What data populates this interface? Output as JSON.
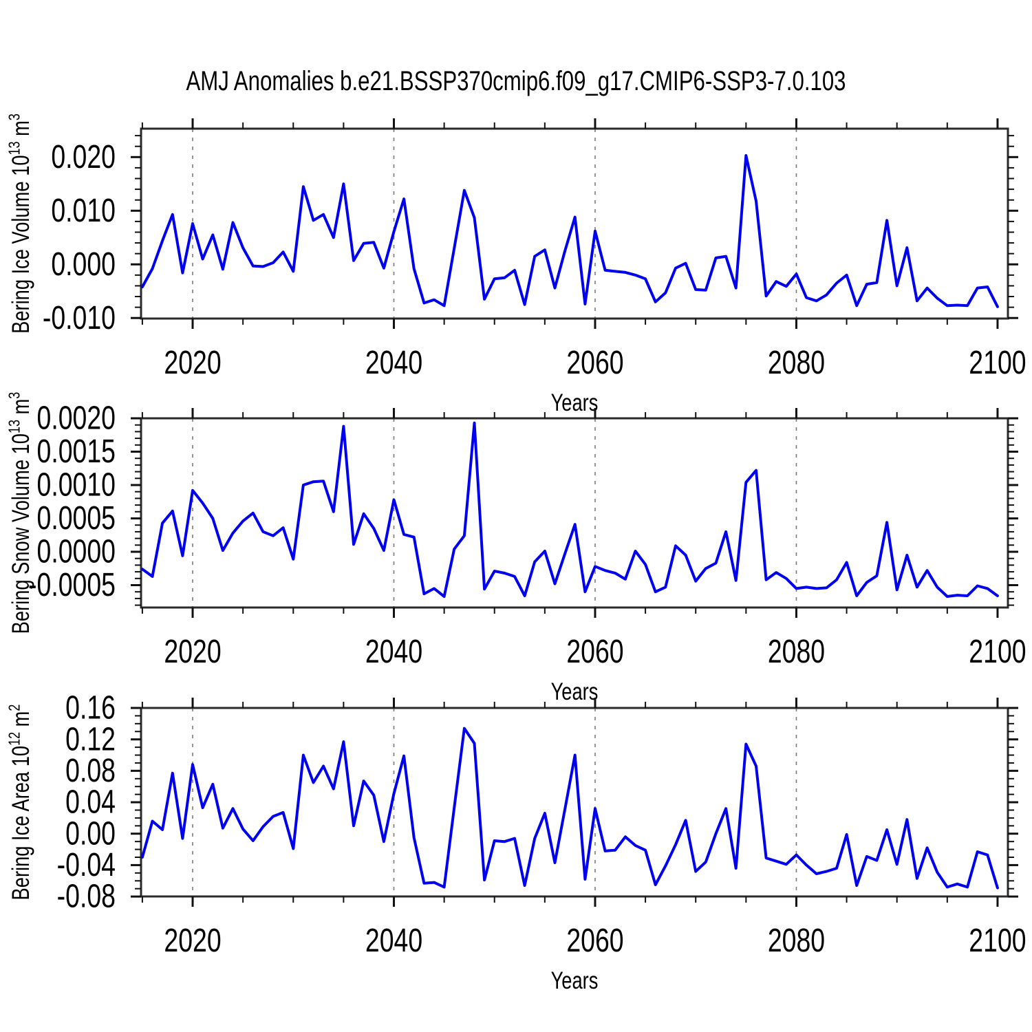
{
  "title": "AMJ Anomalies b.e21.BSSP370cmip6.f09_g17.CMIP6-SSP3-7.0.103",
  "line_color": "#0000f0",
  "grid_color": "#7a7a7a",
  "frame_color": "#2b2b2b",
  "chart_data": [
    {
      "type": "line",
      "panel_id": "bering-ice-volume",
      "ylabel_segments": [
        {
          "t": "Bering Ice Volume 10"
        },
        {
          "t": "13",
          "sup": true
        },
        {
          "t": " m"
        },
        {
          "t": "3",
          "sup": true
        }
      ],
      "xlabel": "Years",
      "x_start": 2015,
      "x_end": 2100,
      "xlim": [
        2014.87,
        2101.03
      ],
      "xticks_major": [
        2020,
        2040,
        2060,
        2080,
        2100
      ],
      "xtick_labels": [
        "2020",
        "2040",
        "2060",
        "2080",
        "2100"
      ],
      "xtick_minor_step": 5,
      "gridlines_x": [
        2020,
        2040,
        2060,
        2080
      ],
      "ylim": [
        -0.0101,
        0.0253
      ],
      "yticks_major": [
        -0.01,
        0.0,
        0.01,
        0.02
      ],
      "ytick_labels": [
        "-0.010",
        "0.000",
        "0.010",
        "0.020"
      ],
      "ytick_minor_step": 0.002,
      "legend": "none",
      "grid": "vertical-dashed",
      "values": [
        -0.0042,
        -0.0008,
        0.0044,
        0.0093,
        -0.0016,
        0.0076,
        0.001,
        0.0055,
        -0.0009,
        0.0078,
        0.0031,
        -0.0003,
        -0.0004,
        0.0003,
        0.0023,
        -0.0013,
        0.0145,
        0.0082,
        0.0093,
        0.005,
        0.015,
        0.0007,
        0.0039,
        0.0041,
        -0.0007,
        0.0061,
        0.0122,
        -0.0008,
        -0.0072,
        -0.0066,
        -0.0077,
        0.003,
        0.0138,
        0.0087,
        -0.0065,
        -0.0027,
        -0.0025,
        -0.0011,
        -0.0075,
        0.0015,
        0.0027,
        -0.0044,
        0.0025,
        0.0088,
        -0.0074,
        0.0062,
        -0.0011,
        -0.0013,
        -0.0015,
        -0.002,
        -0.0027,
        -0.007,
        -0.0053,
        -0.0007,
        0.0002,
        -0.0047,
        -0.0048,
        0.0012,
        0.0015,
        -0.0044,
        0.0203,
        0.0118,
        -0.0059,
        -0.0032,
        -0.0041,
        -0.0018,
        -0.0062,
        -0.0068,
        -0.0057,
        -0.0035,
        -0.002,
        -0.0077,
        -0.0037,
        -0.0034,
        0.0082,
        -0.004,
        0.0031,
        -0.0068,
        -0.0044,
        -0.0063,
        -0.0077,
        -0.0076,
        -0.0077,
        -0.0044,
        -0.0042,
        -0.0079
      ]
    },
    {
      "type": "line",
      "panel_id": "bering-snow-volume",
      "ylabel_segments": [
        {
          "t": "Bering Snow Volume 10"
        },
        {
          "t": "13",
          "sup": true
        },
        {
          "t": " m"
        },
        {
          "t": "3",
          "sup": true
        }
      ],
      "xlabel": "Years",
      "x_start": 2015,
      "x_end": 2100,
      "xlim": [
        2014.87,
        2101.03
      ],
      "xticks_major": [
        2020,
        2040,
        2060,
        2080,
        2100
      ],
      "xtick_labels": [
        "2020",
        "2040",
        "2060",
        "2080",
        "2100"
      ],
      "xtick_minor_step": 5,
      "gridlines_x": [
        2020,
        2040,
        2060,
        2080
      ],
      "ylim": [
        -0.000835,
        0.002
      ],
      "yticks_major": [
        -0.0005,
        0.0,
        0.0005,
        0.001,
        0.0015,
        0.002
      ],
      "ytick_labels": [
        "-0.0005",
        "0.0000",
        "0.0005",
        "0.0010",
        "0.0015",
        "0.0020"
      ],
      "ytick_minor_step": 0.0001,
      "legend": "none",
      "grid": "vertical-dashed",
      "values": [
        -0.00026,
        -0.00037,
        0.00043,
        0.00061,
        -6e-05,
        0.00092,
        0.00073,
        0.0005,
        2e-05,
        0.00028,
        0.00046,
        0.00058,
        0.0003,
        0.00024,
        0.00036,
        -0.00011,
        0.001,
        0.00105,
        0.00106,
        0.0006,
        0.00188,
        0.00011,
        0.00057,
        0.00035,
        2e-05,
        0.00078,
        0.00026,
        0.00022,
        -0.00063,
        -0.00055,
        -0.00067,
        4e-05,
        0.00024,
        0.00193,
        -0.00056,
        -0.00029,
        -0.00032,
        -0.00037,
        -0.00066,
        -0.00015,
        1e-05,
        -0.00048,
        -3e-05,
        0.00041,
        -0.0006,
        -0.00022,
        -0.00028,
        -0.00032,
        -0.00041,
        1e-05,
        -0.00019,
        -0.0006,
        -0.00053,
        9e-05,
        -5e-05,
        -0.00044,
        -0.00025,
        -0.00017,
        0.0003,
        -0.00043,
        0.00104,
        0.00122,
        -0.00042,
        -0.00031,
        -0.0004,
        -0.00055,
        -0.00053,
        -0.00055,
        -0.00054,
        -0.00042,
        -0.00016,
        -0.00066,
        -0.00046,
        -0.00036,
        0.00044,
        -0.00057,
        -5e-05,
        -0.00053,
        -0.00028,
        -0.00053,
        -0.00067,
        -0.00065,
        -0.00066,
        -0.00051,
        -0.00055,
        -0.00066
      ]
    },
    {
      "type": "line",
      "panel_id": "bering-ice-area",
      "ylabel_segments": [
        {
          "t": "Bering Ice Area 10"
        },
        {
          "t": "12",
          "sup": true
        },
        {
          "t": " m"
        },
        {
          "t": "2",
          "sup": true
        }
      ],
      "xlabel": "Years",
      "x_start": 2015,
      "x_end": 2100,
      "xlim": [
        2014.87,
        2101.03
      ],
      "xticks_major": [
        2020,
        2040,
        2060,
        2080,
        2100
      ],
      "xtick_labels": [
        "2020",
        "2040",
        "2060",
        "2080",
        "2100"
      ],
      "xtick_minor_step": 5,
      "gridlines_x": [
        2020,
        2040,
        2060,
        2080
      ],
      "ylim": [
        -0.0799,
        0.16
      ],
      "yticks_major": [
        -0.08,
        -0.04,
        0.0,
        0.04,
        0.08,
        0.12,
        0.16
      ],
      "ytick_labels": [
        "-0.08",
        "-0.04",
        "0.00",
        "0.04",
        "0.08",
        "0.12",
        "0.16"
      ],
      "ytick_minor_step": 0.01,
      "legend": "none",
      "grid": "vertical-dashed",
      "values": [
        -0.03,
        0.016,
        0.005,
        0.077,
        -0.006,
        0.088,
        0.033,
        0.063,
        0.007,
        0.032,
        0.006,
        -0.009,
        0.009,
        0.022,
        0.027,
        -0.019,
        0.1,
        0.065,
        0.086,
        0.057,
        0.117,
        0.01,
        0.067,
        0.049,
        -0.01,
        0.051,
        0.099,
        -0.005,
        -0.063,
        -0.062,
        -0.068,
        0.033,
        0.134,
        0.115,
        -0.059,
        -0.009,
        -0.01,
        -0.006,
        -0.066,
        -0.006,
        0.026,
        -0.037,
        0.031,
        0.1,
        -0.058,
        0.032,
        -0.022,
        -0.021,
        -0.004,
        -0.015,
        -0.021,
        -0.065,
        -0.041,
        -0.014,
        0.017,
        -0.048,
        -0.036,
        0.0,
        0.032,
        -0.044,
        0.114,
        0.086,
        -0.031,
        -0.035,
        -0.039,
        -0.027,
        -0.04,
        -0.051,
        -0.048,
        -0.044,
        -0.001,
        -0.066,
        -0.029,
        -0.034,
        0.005,
        -0.039,
        0.018,
        -0.057,
        -0.018,
        -0.049,
        -0.068,
        -0.064,
        -0.068,
        -0.023,
        -0.027,
        -0.069
      ]
    }
  ]
}
